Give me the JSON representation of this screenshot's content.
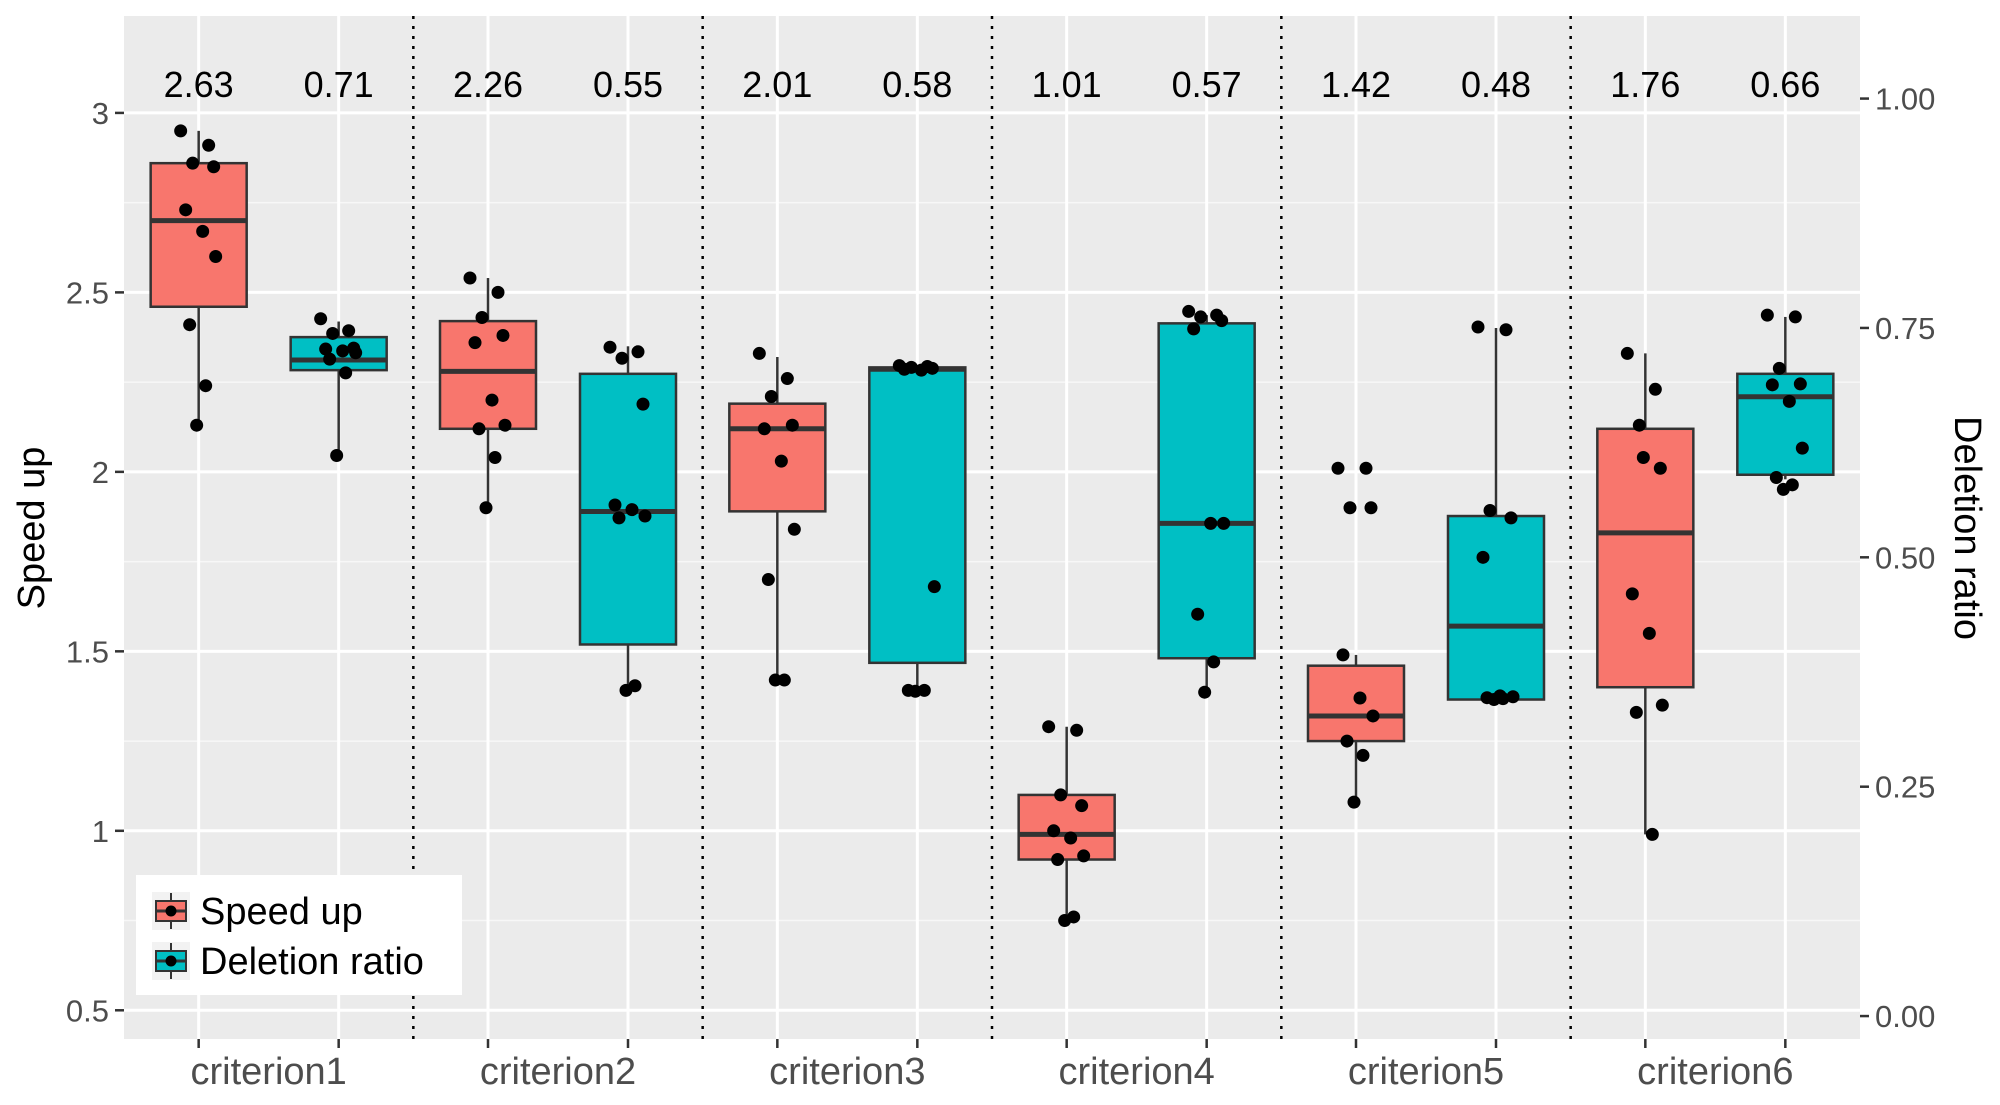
{
  "chart_data": {
    "type": "boxplot",
    "categories": [
      "criterion1",
      "criterion2",
      "criterion3",
      "criterion4",
      "criterion5",
      "criterion6"
    ],
    "ylabel_left": "Speed up",
    "ylabel_right": "Deletion ratio",
    "ylim_left": [
      0.42,
      3.27
    ],
    "ylim_right": [
      -0.025,
      1.09
    ],
    "yticks_left": [
      0.5,
      1,
      1.5,
      2,
      2.5,
      3
    ],
    "ytick_labels_left": [
      "0.5",
      "1",
      "1.5",
      "2",
      "2.5",
      "3"
    ],
    "yticks_right": [
      0,
      0.25,
      0.5,
      0.75,
      1.0
    ],
    "ytick_labels_right": [
      "0.00",
      "0.25",
      "0.50",
      "0.75",
      "1.00"
    ],
    "grid": true,
    "legend_position": "bottom-left",
    "colors": {
      "speed_up": "#F8766D",
      "deletion_ratio": "#00BFC4",
      "panel": "#EBEBEB",
      "grid": "#FFFFFF"
    },
    "mean_labels": [
      [
        "2.63",
        "0.71"
      ],
      [
        "2.26",
        "0.55"
      ],
      [
        "2.01",
        "0.58"
      ],
      [
        "1.01",
        "0.57"
      ],
      [
        "1.42",
        "0.48"
      ],
      [
        "1.76",
        "0.66"
      ]
    ],
    "series": [
      {
        "name": "Speed up",
        "axis": "left",
        "boxes": [
          {
            "min": 2.13,
            "q1": 2.46,
            "median": 2.7,
            "q3": 2.86,
            "max": 2.95
          },
          {
            "min": 1.9,
            "q1": 2.12,
            "median": 2.28,
            "q3": 2.42,
            "max": 2.54
          },
          {
            "min": 1.42,
            "q1": 1.89,
            "median": 2.12,
            "q3": 2.19,
            "max": 2.32
          },
          {
            "min": 0.76,
            "q1": 0.92,
            "median": 0.99,
            "q3": 1.1,
            "max": 1.29
          },
          {
            "min": 1.08,
            "q1": 1.25,
            "median": 1.32,
            "q3": 1.46,
            "max": 1.49
          },
          {
            "min": 0.99,
            "q1": 1.4,
            "median": 1.83,
            "q3": 2.12,
            "max": 2.33
          }
        ],
        "points": [
          [
            2.95,
            2.91,
            2.86,
            2.85,
            2.73,
            2.67,
            2.6,
            2.41,
            2.24,
            2.13
          ],
          [
            2.54,
            2.5,
            2.43,
            2.38,
            2.36,
            2.2,
            2.13,
            2.12,
            2.04,
            1.9
          ],
          [
            2.33,
            2.26,
            2.21,
            2.13,
            2.12,
            2.03,
            1.84,
            1.7,
            1.42,
            1.42
          ],
          [
            1.29,
            1.28,
            1.1,
            1.07,
            1.0,
            0.98,
            0.93,
            0.92,
            0.76,
            0.75
          ],
          [
            2.01,
            2.01,
            1.9,
            1.9,
            1.49,
            1.37,
            1.32,
            1.25,
            1.21,
            1.08
          ],
          [
            2.33,
            2.23,
            2.13,
            2.01,
            1.66,
            1.55,
            1.35,
            1.33,
            0.99,
            2.04
          ]
        ]
      },
      {
        "name": "Deletion ratio",
        "axis": "right",
        "boxes": [
          {
            "min": 0.61,
            "q1": 0.704,
            "median": 0.715,
            "q3": 0.74,
            "max": 0.757
          },
          {
            "min": 0.35,
            "q1": 0.405,
            "median": 0.55,
            "q3": 0.7,
            "max": 0.73
          },
          {
            "min": 0.35,
            "q1": 0.385,
            "median": 0.705,
            "q3": 0.707,
            "max": 0.707
          },
          {
            "min": 0.35,
            "q1": 0.39,
            "median": 0.537,
            "q3": 0.755,
            "max": 0.764
          },
          {
            "min": 0.345,
            "q1": 0.345,
            "median": 0.425,
            "q3": 0.545,
            "max": 0.75
          },
          {
            "min": 0.585,
            "q1": 0.59,
            "median": 0.675,
            "q3": 0.7,
            "max": 0.762
          }
        ],
        "points": [
          [
            0.76,
            0.747,
            0.744,
            0.728,
            0.727,
            0.725,
            0.723,
            0.716,
            0.701,
            0.611
          ],
          [
            0.729,
            0.724,
            0.717,
            0.667,
            0.557,
            0.552,
            0.545,
            0.543,
            0.36,
            0.355
          ],
          [
            0.709,
            0.708,
            0.707,
            0.706,
            0.705,
            0.704,
            0.468,
            0.355,
            0.355,
            0.354
          ],
          [
            0.768,
            0.764,
            0.762,
            0.758,
            0.749,
            0.537,
            0.537,
            0.438,
            0.386,
            0.353
          ],
          [
            0.751,
            0.748,
            0.551,
            0.543,
            0.5,
            0.349,
            0.348,
            0.347,
            0.346,
            0.345
          ],
          [
            0.764,
            0.762,
            0.706,
            0.689,
            0.688,
            0.67,
            0.619,
            0.587,
            0.579,
            0.574
          ]
        ]
      }
    ],
    "legend": [
      {
        "label": "Speed up",
        "color": "#F8766D"
      },
      {
        "label": "Deletion ratio",
        "color": "#00BFC4"
      }
    ]
  }
}
